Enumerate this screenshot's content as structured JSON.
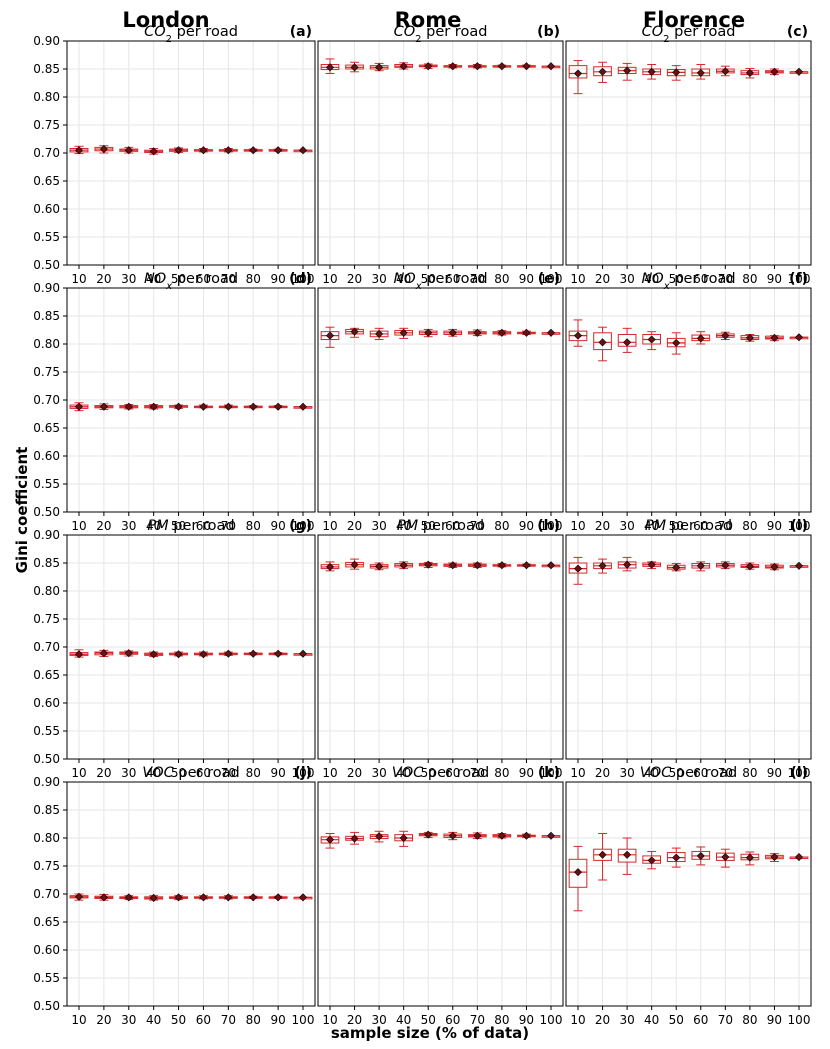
{
  "figure": {
    "column_titles": [
      "London",
      "Rome",
      "Florence"
    ],
    "ylabel": "Gini coefficient",
    "xlabel": "sample size (% of data)"
  },
  "colors": {
    "box": "#d62728",
    "mean_marker": "#6b0f14",
    "grid": "#e6e6e6"
  },
  "chart_data": [
    {
      "type": "box",
      "panel_label": "(a)",
      "title_main": "CO",
      "title_sub": "2",
      "title_rest": " per road",
      "city": "London",
      "categories": [
        "10",
        "20",
        "30",
        "40",
        "50",
        "60",
        "70",
        "80",
        "90",
        "100"
      ],
      "ylim": [
        0.5,
        0.9
      ],
      "yticks": [
        "0.50",
        "0.55",
        "0.60",
        "0.65",
        "0.70",
        "0.75",
        "0.80",
        "0.85",
        "0.90"
      ],
      "mean": [
        0.705,
        0.707,
        0.705,
        0.703,
        0.705,
        0.705,
        0.705,
        0.705,
        0.705,
        0.705
      ],
      "q1": [
        0.702,
        0.704,
        0.703,
        0.701,
        0.703,
        0.704,
        0.704,
        0.704,
        0.704,
        0.705
      ],
      "q3": [
        0.708,
        0.71,
        0.707,
        0.705,
        0.707,
        0.706,
        0.706,
        0.706,
        0.706,
        0.705
      ],
      "whislo": [
        0.699,
        0.7,
        0.7,
        0.698,
        0.701,
        0.702,
        0.702,
        0.703,
        0.703,
        0.705
      ],
      "whishi": [
        0.712,
        0.713,
        0.71,
        0.708,
        0.709,
        0.708,
        0.708,
        0.707,
        0.707,
        0.705
      ]
    },
    {
      "type": "box",
      "panel_label": "(b)",
      "title_main": "CO",
      "title_sub": "2",
      "title_rest": " per road",
      "city": "Rome",
      "categories": [
        "10",
        "20",
        "30",
        "40",
        "50",
        "60",
        "70",
        "80",
        "90",
        "100"
      ],
      "ylim": [
        0.5,
        0.9
      ],
      "yticks": [],
      "mean": [
        0.853,
        0.853,
        0.853,
        0.855,
        0.855,
        0.855,
        0.855,
        0.855,
        0.855,
        0.855
      ],
      "q1": [
        0.849,
        0.85,
        0.85,
        0.853,
        0.854,
        0.854,
        0.854,
        0.854,
        0.855,
        0.855
      ],
      "q3": [
        0.858,
        0.857,
        0.856,
        0.858,
        0.857,
        0.856,
        0.856,
        0.856,
        0.856,
        0.855
      ],
      "whislo": [
        0.842,
        0.845,
        0.847,
        0.85,
        0.851,
        0.852,
        0.852,
        0.853,
        0.854,
        0.855
      ],
      "whishi": [
        0.868,
        0.862,
        0.86,
        0.861,
        0.859,
        0.858,
        0.858,
        0.857,
        0.857,
        0.855
      ]
    },
    {
      "type": "box",
      "panel_label": "(c)",
      "title_main": "CO",
      "title_sub": "2",
      "title_rest": " per road",
      "city": "Florence",
      "categories": [
        "10",
        "20",
        "30",
        "40",
        "50",
        "60",
        "70",
        "80",
        "90",
        "100"
      ],
      "ylim": [
        0.5,
        0.9
      ],
      "yticks": [],
      "mean": [
        0.842,
        0.845,
        0.847,
        0.845,
        0.844,
        0.843,
        0.846,
        0.843,
        0.845,
        0.845
      ],
      "q1": [
        0.834,
        0.838,
        0.842,
        0.84,
        0.838,
        0.838,
        0.843,
        0.84,
        0.843,
        0.845
      ],
      "q3": [
        0.856,
        0.854,
        0.853,
        0.85,
        0.849,
        0.85,
        0.85,
        0.847,
        0.847,
        0.845
      ],
      "whislo": [
        0.806,
        0.826,
        0.83,
        0.832,
        0.83,
        0.832,
        0.838,
        0.834,
        0.84,
        0.845
      ],
      "whishi": [
        0.865,
        0.862,
        0.86,
        0.858,
        0.856,
        0.858,
        0.855,
        0.851,
        0.85,
        0.845
      ]
    },
    {
      "type": "box",
      "panel_label": "(d)",
      "title_main": "NO",
      "title_sub": "x",
      "title_rest": " per road",
      "city": "London",
      "categories": [
        "10",
        "20",
        "30",
        "40",
        "50",
        "60",
        "70",
        "80",
        "90",
        "100"
      ],
      "ylim": [
        0.5,
        0.9
      ],
      "yticks": [
        "0.50",
        "0.55",
        "0.60",
        "0.65",
        "0.70",
        "0.75",
        "0.80",
        "0.85",
        "0.90"
      ],
      "mean": [
        0.688,
        0.688,
        0.688,
        0.688,
        0.688,
        0.688,
        0.688,
        0.688,
        0.688,
        0.688
      ],
      "q1": [
        0.685,
        0.686,
        0.686,
        0.686,
        0.687,
        0.687,
        0.687,
        0.687,
        0.688,
        0.688
      ],
      "q3": [
        0.691,
        0.69,
        0.69,
        0.69,
        0.69,
        0.689,
        0.689,
        0.689,
        0.689,
        0.688
      ],
      "whislo": [
        0.681,
        0.683,
        0.684,
        0.684,
        0.685,
        0.686,
        0.686,
        0.686,
        0.687,
        0.688
      ],
      "whishi": [
        0.695,
        0.693,
        0.692,
        0.692,
        0.691,
        0.691,
        0.691,
        0.69,
        0.69,
        0.688
      ]
    },
    {
      "type": "box",
      "panel_label": "(e)",
      "title_main": "NO",
      "title_sub": "x",
      "title_rest": " per road",
      "city": "Rome",
      "categories": [
        "10",
        "20",
        "30",
        "40",
        "50",
        "60",
        "70",
        "80",
        "90",
        "100"
      ],
      "ylim": [
        0.5,
        0.9
      ],
      "yticks": [],
      "mean": [
        0.815,
        0.822,
        0.818,
        0.82,
        0.82,
        0.82,
        0.82,
        0.82,
        0.82,
        0.82
      ],
      "q1": [
        0.808,
        0.818,
        0.813,
        0.816,
        0.817,
        0.817,
        0.818,
        0.818,
        0.819,
        0.82
      ],
      "q3": [
        0.822,
        0.826,
        0.823,
        0.824,
        0.823,
        0.823,
        0.822,
        0.822,
        0.821,
        0.82
      ],
      "whislo": [
        0.794,
        0.812,
        0.808,
        0.81,
        0.813,
        0.814,
        0.815,
        0.816,
        0.817,
        0.82
      ],
      "whishi": [
        0.83,
        0.828,
        0.828,
        0.828,
        0.826,
        0.826,
        0.825,
        0.824,
        0.823,
        0.82
      ]
    },
    {
      "type": "box",
      "panel_label": "(f)",
      "title_main": "NO",
      "title_sub": "x",
      "title_rest": " per road",
      "city": "Florence",
      "categories": [
        "10",
        "20",
        "30",
        "40",
        "50",
        "60",
        "70",
        "80",
        "90",
        "100"
      ],
      "ylim": [
        0.5,
        0.9
      ],
      "yticks": [],
      "mean": [
        0.815,
        0.803,
        0.803,
        0.808,
        0.802,
        0.81,
        0.815,
        0.811,
        0.811,
        0.812
      ],
      "q1": [
        0.806,
        0.79,
        0.796,
        0.8,
        0.795,
        0.806,
        0.812,
        0.808,
        0.809,
        0.812
      ],
      "q3": [
        0.823,
        0.82,
        0.817,
        0.817,
        0.81,
        0.816,
        0.818,
        0.815,
        0.814,
        0.812
      ],
      "whislo": [
        0.796,
        0.77,
        0.785,
        0.79,
        0.782,
        0.8,
        0.808,
        0.805,
        0.806,
        0.812
      ],
      "whishi": [
        0.843,
        0.83,
        0.828,
        0.822,
        0.82,
        0.822,
        0.821,
        0.817,
        0.815,
        0.812
      ]
    },
    {
      "type": "box",
      "panel_label": "(g)",
      "title_main": "PM",
      "title_sub": "",
      "title_rest": " per road",
      "city": "London",
      "categories": [
        "10",
        "20",
        "30",
        "40",
        "50",
        "60",
        "70",
        "80",
        "90",
        "100"
      ],
      "ylim": [
        0.5,
        0.9
      ],
      "yticks": [
        "0.50",
        "0.55",
        "0.60",
        "0.65",
        "0.70",
        "0.75",
        "0.80",
        "0.85",
        "0.90"
      ],
      "mean": [
        0.687,
        0.689,
        0.689,
        0.687,
        0.687,
        0.687,
        0.688,
        0.688,
        0.688,
        0.688
      ],
      "q1": [
        0.685,
        0.686,
        0.687,
        0.685,
        0.686,
        0.686,
        0.687,
        0.687,
        0.687,
        0.688
      ],
      "q3": [
        0.69,
        0.691,
        0.691,
        0.689,
        0.689,
        0.689,
        0.689,
        0.689,
        0.689,
        0.688
      ],
      "whislo": [
        0.682,
        0.683,
        0.684,
        0.683,
        0.684,
        0.684,
        0.685,
        0.686,
        0.686,
        0.688
      ],
      "whishi": [
        0.695,
        0.694,
        0.693,
        0.691,
        0.691,
        0.691,
        0.691,
        0.69,
        0.69,
        0.688
      ]
    },
    {
      "type": "box",
      "panel_label": "(h)",
      "title_main": "PM",
      "title_sub": "",
      "title_rest": " per road",
      "city": "Rome",
      "categories": [
        "10",
        "20",
        "30",
        "40",
        "50",
        "60",
        "70",
        "80",
        "90",
        "100"
      ],
      "ylim": [
        0.5,
        0.9
      ],
      "yticks": [],
      "mean": [
        0.843,
        0.847,
        0.844,
        0.846,
        0.847,
        0.846,
        0.846,
        0.846,
        0.846,
        0.846
      ],
      "q1": [
        0.84,
        0.843,
        0.841,
        0.843,
        0.845,
        0.844,
        0.844,
        0.845,
        0.845,
        0.846
      ],
      "q3": [
        0.847,
        0.851,
        0.847,
        0.849,
        0.849,
        0.848,
        0.848,
        0.847,
        0.847,
        0.846
      ],
      "whislo": [
        0.836,
        0.839,
        0.838,
        0.84,
        0.842,
        0.842,
        0.842,
        0.843,
        0.844,
        0.846
      ],
      "whishi": [
        0.852,
        0.857,
        0.85,
        0.852,
        0.851,
        0.85,
        0.85,
        0.849,
        0.848,
        0.846
      ]
    },
    {
      "type": "box",
      "panel_label": "(i)",
      "title_main": "PM",
      "title_sub": "",
      "title_rest": " per road",
      "city": "Florence",
      "categories": [
        "10",
        "20",
        "30",
        "40",
        "50",
        "60",
        "70",
        "80",
        "90",
        "100"
      ],
      "ylim": [
        0.5,
        0.9
      ],
      "yticks": [],
      "mean": [
        0.84,
        0.845,
        0.847,
        0.847,
        0.842,
        0.845,
        0.846,
        0.844,
        0.843,
        0.845
      ],
      "q1": [
        0.832,
        0.84,
        0.841,
        0.844,
        0.839,
        0.841,
        0.843,
        0.842,
        0.841,
        0.845
      ],
      "q3": [
        0.85,
        0.85,
        0.852,
        0.85,
        0.846,
        0.849,
        0.849,
        0.847,
        0.846,
        0.845
      ],
      "whislo": [
        0.812,
        0.832,
        0.836,
        0.84,
        0.836,
        0.836,
        0.84,
        0.839,
        0.838,
        0.845
      ],
      "whishi": [
        0.86,
        0.857,
        0.86,
        0.852,
        0.849,
        0.852,
        0.852,
        0.85,
        0.848,
        0.845
      ]
    },
    {
      "type": "box",
      "panel_label": "(j)",
      "title_main": "VOC",
      "title_sub": "",
      "title_rest": " per road",
      "city": "London",
      "categories": [
        "10",
        "20",
        "30",
        "40",
        "50",
        "60",
        "70",
        "80",
        "90",
        "100"
      ],
      "ylim": [
        0.5,
        0.9
      ],
      "yticks": [
        "0.50",
        "0.55",
        "0.60",
        "0.65",
        "0.70",
        "0.75",
        "0.80",
        "0.85",
        "0.90"
      ],
      "mean": [
        0.695,
        0.694,
        0.694,
        0.693,
        0.694,
        0.694,
        0.694,
        0.694,
        0.694,
        0.694
      ],
      "q1": [
        0.693,
        0.692,
        0.692,
        0.691,
        0.692,
        0.693,
        0.693,
        0.693,
        0.694,
        0.694
      ],
      "q3": [
        0.697,
        0.696,
        0.695,
        0.695,
        0.695,
        0.695,
        0.695,
        0.695,
        0.695,
        0.694
      ],
      "whislo": [
        0.689,
        0.689,
        0.69,
        0.689,
        0.69,
        0.691,
        0.691,
        0.692,
        0.692,
        0.694
      ],
      "whishi": [
        0.7,
        0.699,
        0.697,
        0.697,
        0.697,
        0.697,
        0.697,
        0.696,
        0.696,
        0.694
      ]
    },
    {
      "type": "box",
      "panel_label": "(k)",
      "title_main": "VOC",
      "title_sub": "",
      "title_rest": " per road",
      "city": "Rome",
      "categories": [
        "10",
        "20",
        "30",
        "40",
        "50",
        "60",
        "70",
        "80",
        "90",
        "100"
      ],
      "ylim": [
        0.5,
        0.9
      ],
      "yticks": [],
      "mean": [
        0.797,
        0.799,
        0.803,
        0.8,
        0.806,
        0.804,
        0.804,
        0.804,
        0.804,
        0.804
      ],
      "q1": [
        0.791,
        0.796,
        0.799,
        0.795,
        0.804,
        0.801,
        0.802,
        0.802,
        0.803,
        0.804
      ],
      "q3": [
        0.802,
        0.803,
        0.806,
        0.806,
        0.808,
        0.807,
        0.806,
        0.806,
        0.805,
        0.804
      ],
      "whislo": [
        0.782,
        0.789,
        0.793,
        0.785,
        0.801,
        0.797,
        0.799,
        0.8,
        0.801,
        0.804
      ],
      "whishi": [
        0.808,
        0.81,
        0.812,
        0.812,
        0.81,
        0.81,
        0.809,
        0.808,
        0.807,
        0.804
      ]
    },
    {
      "type": "box",
      "panel_label": "(l)",
      "title_main": "VOC",
      "title_sub": "",
      "title_rest": " per road",
      "city": "Florence",
      "categories": [
        "10",
        "20",
        "30",
        "40",
        "50",
        "60",
        "70",
        "80",
        "90",
        "100"
      ],
      "ylim": [
        0.5,
        0.9
      ],
      "yticks": [],
      "mean": [
        0.739,
        0.77,
        0.77,
        0.76,
        0.765,
        0.768,
        0.766,
        0.765,
        0.766,
        0.766
      ],
      "q1": [
        0.712,
        0.76,
        0.757,
        0.755,
        0.758,
        0.762,
        0.76,
        0.761,
        0.763,
        0.766
      ],
      "q3": [
        0.762,
        0.78,
        0.78,
        0.768,
        0.774,
        0.776,
        0.773,
        0.771,
        0.769,
        0.766
      ],
      "whislo": [
        0.67,
        0.725,
        0.735,
        0.745,
        0.748,
        0.752,
        0.748,
        0.752,
        0.758,
        0.766
      ],
      "whishi": [
        0.785,
        0.808,
        0.8,
        0.776,
        0.782,
        0.784,
        0.78,
        0.775,
        0.772,
        0.766
      ]
    }
  ]
}
